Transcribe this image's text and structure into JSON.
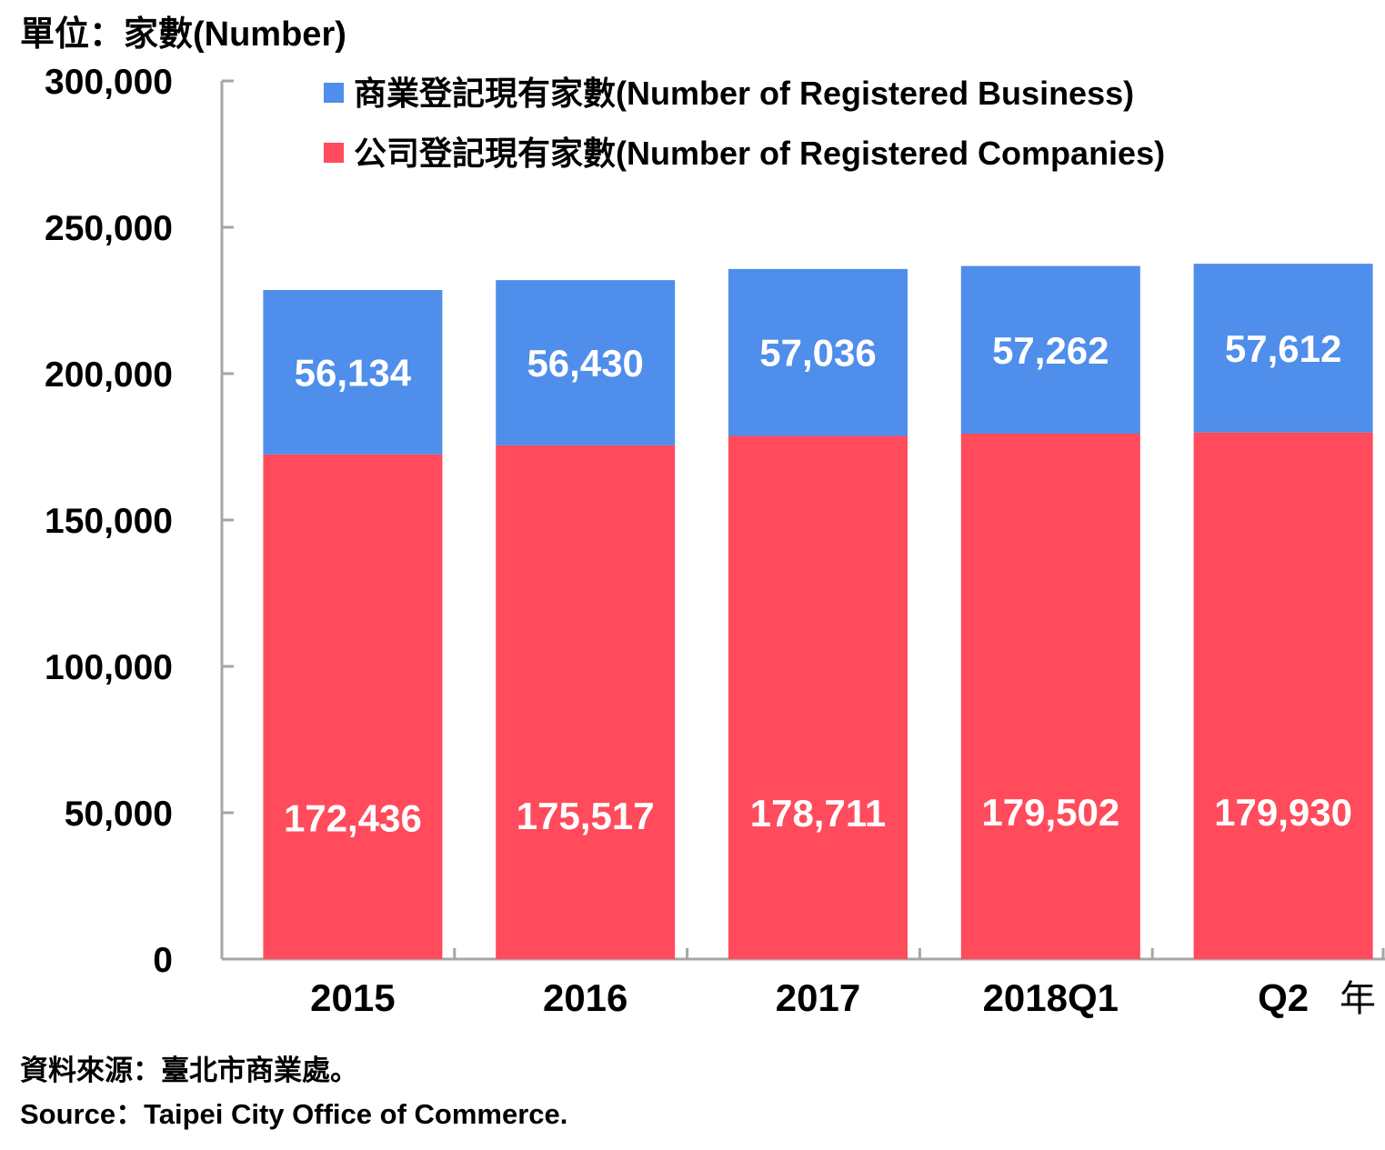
{
  "unit_label": "單位：家數(Number)",
  "year_suffix": "年",
  "source_zh": "資料來源：臺北市商業處。",
  "source_en": "Source：Taipei City Office of Commerce.",
  "colors": {
    "business": "#4F8EEA",
    "companies": "#FF4B5C",
    "axis": "#A6A6A6",
    "label": "#FFFFFF"
  },
  "chart_data": {
    "type": "bar",
    "stacked": true,
    "categories": [
      "2015",
      "2016",
      "2017",
      "2018Q1",
      "Q2"
    ],
    "series": [
      {
        "name": "公司登記現有家數(Number of Registered Companies)",
        "values": [
          172436,
          175517,
          178711,
          179502,
          179930
        ],
        "color": "#FF4B5C"
      },
      {
        "name": "商業登記現有家數(Number of Registered Business)",
        "values": [
          56134,
          56430,
          57036,
          57262,
          57612
        ],
        "color": "#4F8EEA"
      }
    ],
    "ylim": [
      0,
      300000
    ],
    "yticks": [
      0,
      50000,
      100000,
      150000,
      200000,
      250000,
      300000
    ],
    "ytick_labels": [
      "0",
      "50,000",
      "100,000",
      "150,000",
      "200,000",
      "250,000",
      "300,000"
    ],
    "value_labels": [
      [
        "172,436",
        "175,517",
        "178,711",
        "179,502",
        "179,930"
      ],
      [
        "56,134",
        "56,430",
        "57,036",
        "57,262",
        "57,612"
      ]
    ],
    "legend_position": "top",
    "grid": false
  }
}
